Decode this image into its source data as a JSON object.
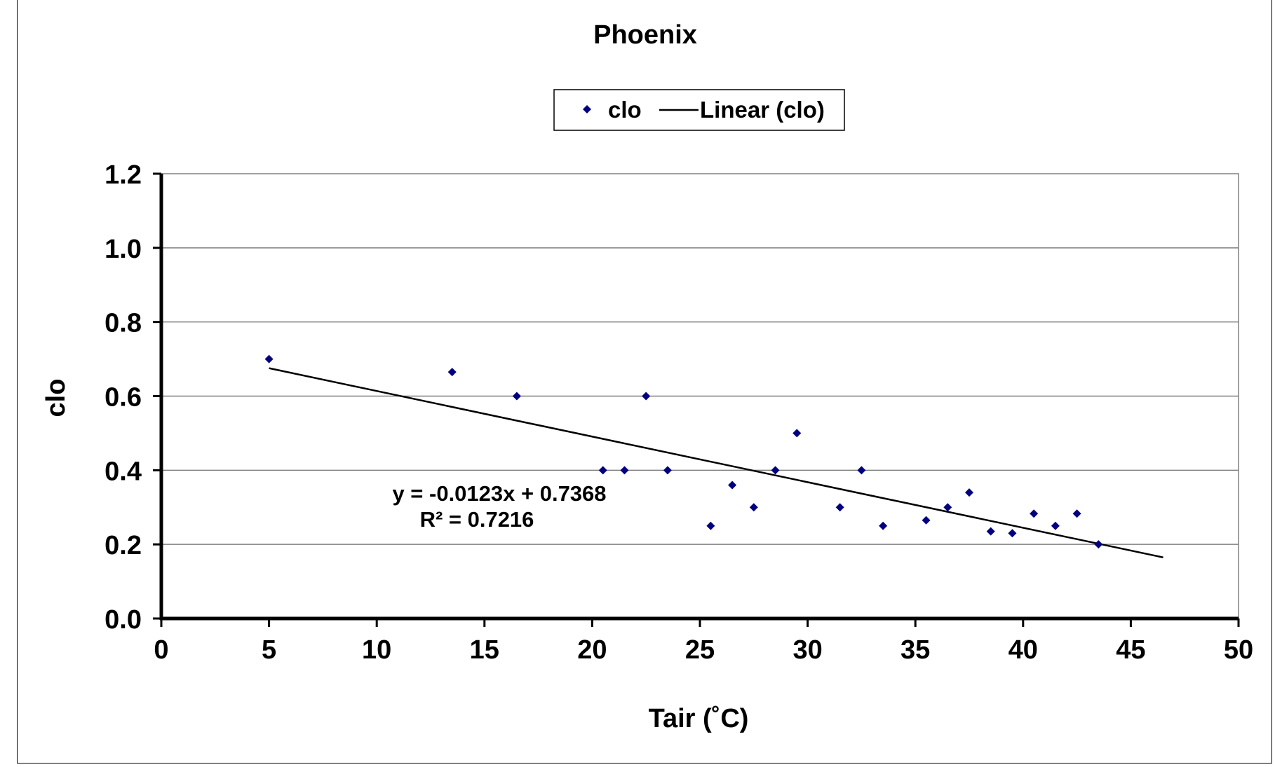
{
  "chart_data": {
    "type": "scatter",
    "title": "Phoenix",
    "xlabel": "Tair (˚C)",
    "ylabel": "clo",
    "xlim": [
      0,
      50
    ],
    "ylim": [
      0,
      1.2
    ],
    "x_ticks": [
      "0",
      "5",
      "10",
      "15",
      "20",
      "25",
      "30",
      "35",
      "40",
      "45",
      "50"
    ],
    "y_ticks": [
      "0.0",
      "0.2",
      "0.4",
      "0.6",
      "0.8",
      "1.0",
      "1.2"
    ],
    "grid": "horizontal",
    "legend": {
      "placement": "top-center",
      "entries": [
        "clo",
        "Linear (clo)"
      ]
    },
    "series": [
      {
        "name": "clo",
        "color": "#000080",
        "marker": "diamond",
        "x": [
          5,
          13.5,
          16.5,
          20.5,
          21.5,
          22.5,
          23.5,
          25.5,
          26.5,
          27.5,
          28.5,
          29.5,
          31.5,
          32.5,
          33.5,
          35.5,
          36.5,
          37.5,
          38.5,
          39.5,
          40.5,
          41.5,
          42.5,
          43.5
        ],
        "y": [
          0.7,
          0.665,
          0.6,
          0.4,
          0.4,
          0.6,
          0.4,
          0.25,
          0.36,
          0.3,
          0.4,
          0.5,
          0.3,
          0.4,
          0.25,
          0.265,
          0.3,
          0.34,
          0.235,
          0.23,
          0.283,
          0.25,
          0.283,
          0.2
        ]
      }
    ],
    "trendline": {
      "name": "Linear (clo)",
      "slope": -0.0123,
      "intercept": 0.7368,
      "x_range": [
        5,
        46.5
      ],
      "color": "#000000"
    },
    "annotations": {
      "equation": "y = -0.0123x + 0.7368",
      "r_squared": "R² = 0.7216"
    }
  }
}
